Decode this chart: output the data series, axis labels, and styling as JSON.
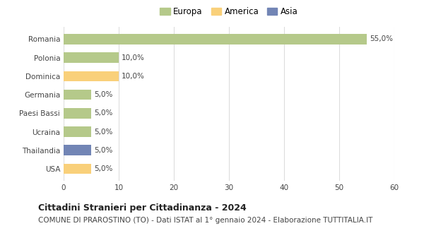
{
  "categories": [
    "Romania",
    "Polonia",
    "Dominica",
    "Germania",
    "Paesi Bassi",
    "Ucraina",
    "Thailandia",
    "USA"
  ],
  "values": [
    55.0,
    10.0,
    10.0,
    5.0,
    5.0,
    5.0,
    5.0,
    5.0
  ],
  "colors": [
    "#b5c98a",
    "#b5c98a",
    "#f9d07a",
    "#b5c98a",
    "#b5c98a",
    "#b5c98a",
    "#7285b5",
    "#f9d07a"
  ],
  "continents": [
    "Europa",
    "Europa",
    "America",
    "Europa",
    "Europa",
    "Europa",
    "Asia",
    "America"
  ],
  "legend_items": [
    {
      "label": "Europa",
      "color": "#b5c98a"
    },
    {
      "label": "America",
      "color": "#f9d07a"
    },
    {
      "label": "Asia",
      "color": "#7285b5"
    }
  ],
  "xlim": [
    0,
    60
  ],
  "xticks": [
    0,
    10,
    20,
    30,
    40,
    50,
    60
  ],
  "title": "Cittadini Stranieri per Cittadinanza - 2024",
  "subtitle": "COMUNE DI PRAROSTINO (TO) - Dati ISTAT al 1° gennaio 2024 - Elaborazione TUTTITALIA.IT",
  "title_fontsize": 9,
  "subtitle_fontsize": 7.5,
  "bar_height": 0.55,
  "background_color": "#ffffff",
  "grid_color": "#dddddd",
  "label_fontsize": 7.5,
  "tick_fontsize": 7.5,
  "legend_fontsize": 8.5
}
